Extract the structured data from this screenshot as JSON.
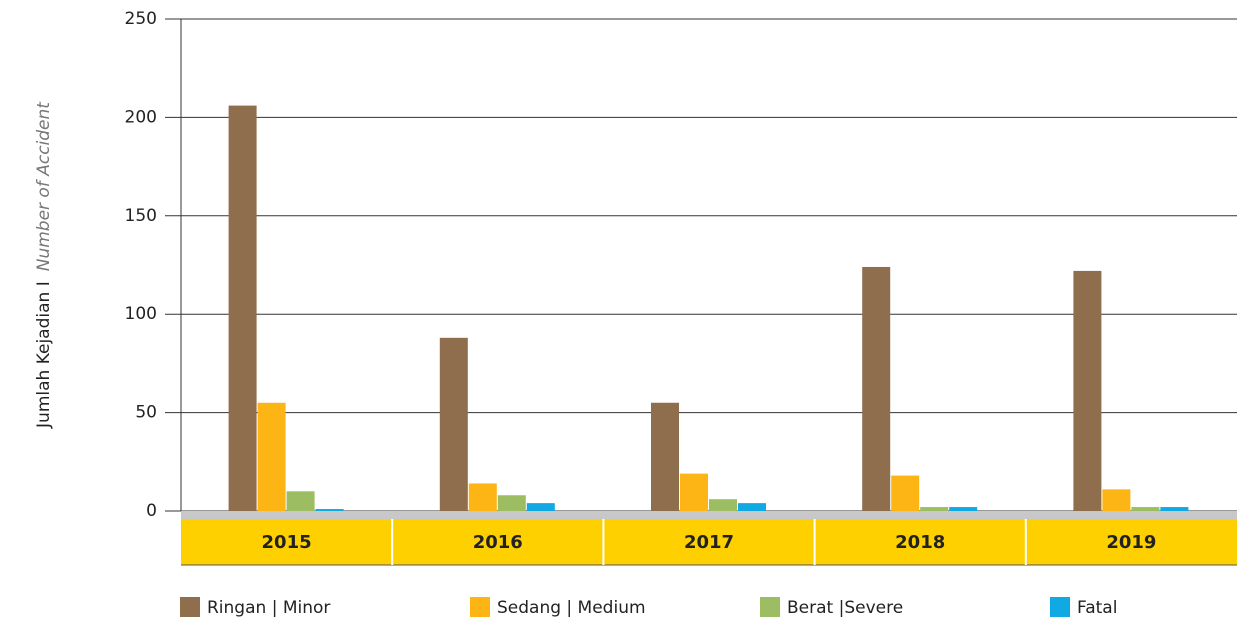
{
  "chart_data": {
    "type": "bar",
    "y_label": [
      "Jumlah Kejadian I",
      "Number of Accident"
    ],
    "categories": [
      "2015",
      "2016",
      "2017",
      "2018",
      "2019"
    ],
    "series": [
      {
        "name": "Ringan | Minor",
        "color": "#8f6e4e",
        "values": [
          206,
          88,
          55,
          124,
          122
        ]
      },
      {
        "name": "Sedang | Medium",
        "color": "#fdb515",
        "values": [
          55,
          14,
          19,
          18,
          11
        ]
      },
      {
        "name": "Berat |Severe",
        "color": "#9dbd62",
        "values": [
          10,
          8,
          6,
          2,
          2
        ]
      },
      {
        "name": "Fatal",
        "color": "#10a9e3",
        "values": [
          1,
          4,
          4,
          2,
          2
        ]
      }
    ],
    "ylim": [
      0,
      250
    ],
    "yticks": [
      0,
      50,
      100,
      150,
      200,
      250
    ],
    "grid": true
  }
}
